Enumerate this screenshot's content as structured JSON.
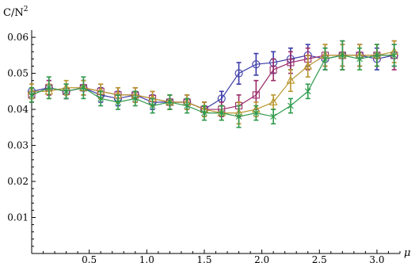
{
  "chart_data": {
    "type": "line",
    "ylabel_html": "C/N",
    "ylabel_sup": "2",
    "xlabel": "μ",
    "xlim": [
      0.0,
      3.2
    ],
    "ylim": [
      0.0,
      0.062
    ],
    "x_ticks": [
      {
        "value": 0.5,
        "label": "0.5"
      },
      {
        "value": 1.0,
        "label": "1.0"
      },
      {
        "value": 1.5,
        "label": "1.5"
      },
      {
        "value": 2.0,
        "label": "2.0"
      },
      {
        "value": 2.5,
        "label": "2.5"
      },
      {
        "value": 3.0,
        "label": "3.0"
      }
    ],
    "y_ticks": [
      {
        "value": 0.01,
        "label": "0.01"
      },
      {
        "value": 0.02,
        "label": "0.02"
      },
      {
        "value": 0.03,
        "label": "0.03"
      },
      {
        "value": 0.04,
        "label": "0.04"
      },
      {
        "value": 0.05,
        "label": "0.05"
      },
      {
        "value": 0.06,
        "label": "0.06"
      }
    ],
    "x": [
      0.0,
      0.15,
      0.3,
      0.45,
      0.6,
      0.75,
      0.9,
      1.05,
      1.2,
      1.35,
      1.5,
      1.65,
      1.8,
      1.95,
      2.1,
      2.25,
      2.4,
      2.55,
      2.7,
      2.85,
      3.0,
      3.15
    ],
    "series": [
      {
        "color": "#3b3ba8",
        "marker": "circle",
        "values": [
          0.045,
          0.046,
          0.045,
          0.046,
          0.044,
          0.043,
          0.044,
          0.042,
          0.042,
          0.042,
          0.04,
          0.043,
          0.05,
          0.0525,
          0.053,
          0.054,
          0.055,
          0.054,
          0.055,
          0.055,
          0.054,
          0.055
        ],
        "errors": [
          0.002,
          0.002,
          0.002,
          0.002,
          0.002,
          0.002,
          0.002,
          0.002,
          0.002,
          0.002,
          0.002,
          0.002,
          0.003,
          0.003,
          0.003,
          0.003,
          0.003,
          0.003,
          0.003,
          0.003,
          0.003,
          0.003
        ]
      },
      {
        "color": "#9b2c6a",
        "marker": "square",
        "values": [
          0.044,
          0.046,
          0.045,
          0.046,
          0.045,
          0.044,
          0.044,
          0.043,
          0.042,
          0.042,
          0.04,
          0.04,
          0.041,
          0.044,
          0.051,
          0.053,
          0.054,
          0.055,
          0.055,
          0.055,
          0.055,
          0.055
        ],
        "errors": [
          0.002,
          0.002,
          0.002,
          0.002,
          0.002,
          0.002,
          0.002,
          0.002,
          0.002,
          0.002,
          0.002,
          0.002,
          0.003,
          0.004,
          0.003,
          0.003,
          0.003,
          0.003,
          0.004,
          0.003,
          0.003,
          0.004
        ]
      },
      {
        "color": "#b8962e",
        "marker": "triangle",
        "values": [
          0.045,
          0.045,
          0.046,
          0.046,
          0.045,
          0.044,
          0.044,
          0.043,
          0.042,
          0.042,
          0.04,
          0.039,
          0.039,
          0.04,
          0.042,
          0.048,
          0.052,
          0.055,
          0.055,
          0.055,
          0.055,
          0.056
        ],
        "errors": [
          0.002,
          0.002,
          0.002,
          0.002,
          0.002,
          0.002,
          0.002,
          0.002,
          0.002,
          0.002,
          0.002,
          0.002,
          0.003,
          0.002,
          0.002,
          0.003,
          0.003,
          0.003,
          0.003,
          0.003,
          0.003,
          0.003
        ]
      },
      {
        "color": "#2e9a4a",
        "marker": "x",
        "values": [
          0.044,
          0.046,
          0.045,
          0.046,
          0.043,
          0.042,
          0.043,
          0.041,
          0.042,
          0.041,
          0.039,
          0.039,
          0.038,
          0.039,
          0.038,
          0.041,
          0.045,
          0.054,
          0.055,
          0.054,
          0.055,
          0.055
        ],
        "errors": [
          0.002,
          0.003,
          0.002,
          0.003,
          0.002,
          0.002,
          0.002,
          0.002,
          0.002,
          0.002,
          0.002,
          0.002,
          0.003,
          0.002,
          0.002,
          0.002,
          0.002,
          0.003,
          0.004,
          0.003,
          0.003,
          0.003
        ]
      }
    ]
  }
}
